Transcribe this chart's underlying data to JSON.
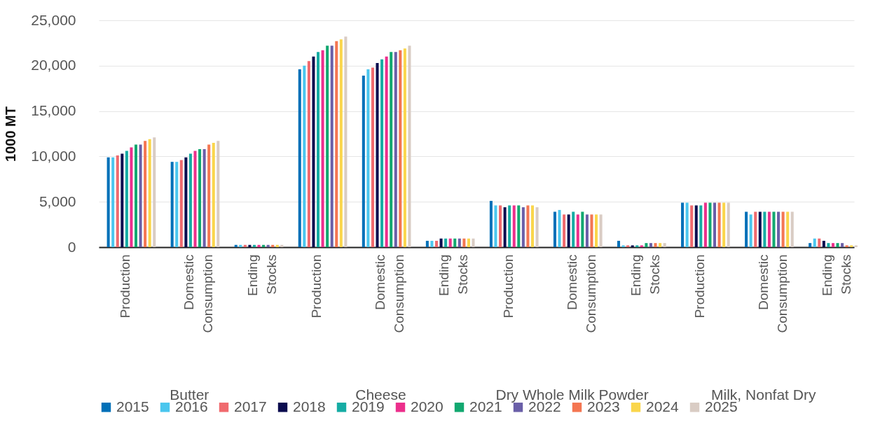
{
  "chart_data": {
    "type": "bar",
    "ylabel": "1000 MT",
    "categories": [
      "Production",
      "Domestic Consumption",
      "Ending Stocks",
      "Production",
      "Domestic Consumption",
      "Ending Stocks",
      "Production",
      "Domestic Consumption",
      "Ending Stocks",
      "Production",
      "Domestic Consumption",
      "Ending Stocks"
    ],
    "annotations": [
      "Butter",
      "Cheese",
      "Dry Whole Milk Powder",
      "Milk, Nonfat Dry"
    ],
    "series": [
      {
        "name": "2015",
        "color": "#0070b8",
        "values": [
          9900,
          9400,
          250,
          19600,
          18900,
          700,
          5100,
          3900,
          700,
          4900,
          3900,
          450
        ]
      },
      {
        "name": "2016",
        "color": "#4ac6ee",
        "values": [
          9900,
          9400,
          250,
          20000,
          19600,
          700,
          4600,
          4100,
          200,
          4900,
          3600,
          950
        ]
      },
      {
        "name": "2017",
        "color": "#f06a6e",
        "values": [
          10100,
          9600,
          250,
          20500,
          19800,
          700,
          4600,
          3600,
          200,
          4600,
          3900,
          950
        ]
      },
      {
        "name": "2018",
        "color": "#0b0c4f",
        "values": [
          10300,
          9900,
          250,
          21000,
          20300,
          950,
          4400,
          3600,
          200,
          4600,
          3900,
          700
        ]
      },
      {
        "name": "2019",
        "color": "#16aca4",
        "values": [
          10600,
          10300,
          250,
          21500,
          20700,
          950,
          4600,
          3900,
          200,
          4600,
          3900,
          450
        ]
      },
      {
        "name": "2020",
        "color": "#ec2f8c",
        "values": [
          11000,
          10600,
          250,
          21700,
          21000,
          950,
          4600,
          3600,
          200,
          4900,
          3900,
          450
        ]
      },
      {
        "name": "2021",
        "color": "#12a870",
        "values": [
          11300,
          10800,
          250,
          22200,
          21500,
          950,
          4600,
          3900,
          450,
          4900,
          3900,
          450
        ]
      },
      {
        "name": "2022",
        "color": "#6a5fa8",
        "values": [
          11300,
          10800,
          250,
          22200,
          21500,
          950,
          4400,
          3600,
          450,
          4900,
          3900,
          450
        ]
      },
      {
        "name": "2023",
        "color": "#f47652",
        "values": [
          11700,
          11300,
          250,
          22700,
          21700,
          950,
          4600,
          3600,
          450,
          4900,
          3900,
          200
        ]
      },
      {
        "name": "2024",
        "color": "#fad64c",
        "values": [
          11900,
          11500,
          250,
          22900,
          21900,
          950,
          4600,
          3600,
          450,
          4900,
          3900,
          200
        ]
      },
      {
        "name": "2025",
        "color": "#d9ccc4",
        "values": [
          12100,
          11700,
          250,
          23200,
          22200,
          950,
          4400,
          3600,
          450,
          4900,
          3900,
          200
        ]
      }
    ],
    "ylim": [
      0,
      25000
    ],
    "yticks": [
      0,
      {
        "value": 5000,
        "label": "5,000"
      },
      {
        "value": 10000,
        "label": "10,000"
      },
      {
        "value": 15000,
        "label": "15,000"
      },
      {
        "value": 20000,
        "label": "20,000"
      },
      {
        "value": 25000,
        "label": "25,000"
      }
    ],
    "grid": "y",
    "legend": "bottom"
  }
}
